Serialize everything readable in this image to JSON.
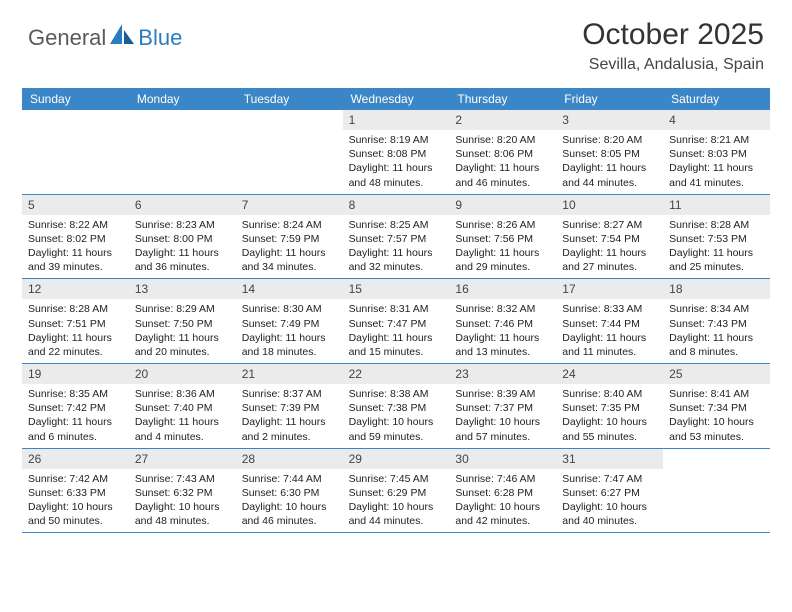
{
  "brand": {
    "general": "General",
    "blue": "Blue"
  },
  "title": {
    "month": "October 2025",
    "location": "Sevilla, Andalusia, Spain"
  },
  "colors": {
    "header_bg": "#3b86c7",
    "header_text": "#ffffff",
    "daynum_bg": "#ebebeb",
    "week_border": "#3b86c7",
    "logo_blue": "#2b7bbf",
    "logo_gray": "#5a5a5a"
  },
  "dayheads": [
    "Sunday",
    "Monday",
    "Tuesday",
    "Wednesday",
    "Thursday",
    "Friday",
    "Saturday"
  ],
  "weeks": [
    [
      {
        "n": "",
        "sr": "",
        "ss": "",
        "d1": "",
        "d2": ""
      },
      {
        "n": "",
        "sr": "",
        "ss": "",
        "d1": "",
        "d2": ""
      },
      {
        "n": "",
        "sr": "",
        "ss": "",
        "d1": "",
        "d2": ""
      },
      {
        "n": "1",
        "sr": "Sunrise: 8:19 AM",
        "ss": "Sunset: 8:08 PM",
        "d1": "Daylight: 11 hours",
        "d2": "and 48 minutes."
      },
      {
        "n": "2",
        "sr": "Sunrise: 8:20 AM",
        "ss": "Sunset: 8:06 PM",
        "d1": "Daylight: 11 hours",
        "d2": "and 46 minutes."
      },
      {
        "n": "3",
        "sr": "Sunrise: 8:20 AM",
        "ss": "Sunset: 8:05 PM",
        "d1": "Daylight: 11 hours",
        "d2": "and 44 minutes."
      },
      {
        "n": "4",
        "sr": "Sunrise: 8:21 AM",
        "ss": "Sunset: 8:03 PM",
        "d1": "Daylight: 11 hours",
        "d2": "and 41 minutes."
      }
    ],
    [
      {
        "n": "5",
        "sr": "Sunrise: 8:22 AM",
        "ss": "Sunset: 8:02 PM",
        "d1": "Daylight: 11 hours",
        "d2": "and 39 minutes."
      },
      {
        "n": "6",
        "sr": "Sunrise: 8:23 AM",
        "ss": "Sunset: 8:00 PM",
        "d1": "Daylight: 11 hours",
        "d2": "and 36 minutes."
      },
      {
        "n": "7",
        "sr": "Sunrise: 8:24 AM",
        "ss": "Sunset: 7:59 PM",
        "d1": "Daylight: 11 hours",
        "d2": "and 34 minutes."
      },
      {
        "n": "8",
        "sr": "Sunrise: 8:25 AM",
        "ss": "Sunset: 7:57 PM",
        "d1": "Daylight: 11 hours",
        "d2": "and 32 minutes."
      },
      {
        "n": "9",
        "sr": "Sunrise: 8:26 AM",
        "ss": "Sunset: 7:56 PM",
        "d1": "Daylight: 11 hours",
        "d2": "and 29 minutes."
      },
      {
        "n": "10",
        "sr": "Sunrise: 8:27 AM",
        "ss": "Sunset: 7:54 PM",
        "d1": "Daylight: 11 hours",
        "d2": "and 27 minutes."
      },
      {
        "n": "11",
        "sr": "Sunrise: 8:28 AM",
        "ss": "Sunset: 7:53 PM",
        "d1": "Daylight: 11 hours",
        "d2": "and 25 minutes."
      }
    ],
    [
      {
        "n": "12",
        "sr": "Sunrise: 8:28 AM",
        "ss": "Sunset: 7:51 PM",
        "d1": "Daylight: 11 hours",
        "d2": "and 22 minutes."
      },
      {
        "n": "13",
        "sr": "Sunrise: 8:29 AM",
        "ss": "Sunset: 7:50 PM",
        "d1": "Daylight: 11 hours",
        "d2": "and 20 minutes."
      },
      {
        "n": "14",
        "sr": "Sunrise: 8:30 AM",
        "ss": "Sunset: 7:49 PM",
        "d1": "Daylight: 11 hours",
        "d2": "and 18 minutes."
      },
      {
        "n": "15",
        "sr": "Sunrise: 8:31 AM",
        "ss": "Sunset: 7:47 PM",
        "d1": "Daylight: 11 hours",
        "d2": "and 15 minutes."
      },
      {
        "n": "16",
        "sr": "Sunrise: 8:32 AM",
        "ss": "Sunset: 7:46 PM",
        "d1": "Daylight: 11 hours",
        "d2": "and 13 minutes."
      },
      {
        "n": "17",
        "sr": "Sunrise: 8:33 AM",
        "ss": "Sunset: 7:44 PM",
        "d1": "Daylight: 11 hours",
        "d2": "and 11 minutes."
      },
      {
        "n": "18",
        "sr": "Sunrise: 8:34 AM",
        "ss": "Sunset: 7:43 PM",
        "d1": "Daylight: 11 hours",
        "d2": "and 8 minutes."
      }
    ],
    [
      {
        "n": "19",
        "sr": "Sunrise: 8:35 AM",
        "ss": "Sunset: 7:42 PM",
        "d1": "Daylight: 11 hours",
        "d2": "and 6 minutes."
      },
      {
        "n": "20",
        "sr": "Sunrise: 8:36 AM",
        "ss": "Sunset: 7:40 PM",
        "d1": "Daylight: 11 hours",
        "d2": "and 4 minutes."
      },
      {
        "n": "21",
        "sr": "Sunrise: 8:37 AM",
        "ss": "Sunset: 7:39 PM",
        "d1": "Daylight: 11 hours",
        "d2": "and 2 minutes."
      },
      {
        "n": "22",
        "sr": "Sunrise: 8:38 AM",
        "ss": "Sunset: 7:38 PM",
        "d1": "Daylight: 10 hours",
        "d2": "and 59 minutes."
      },
      {
        "n": "23",
        "sr": "Sunrise: 8:39 AM",
        "ss": "Sunset: 7:37 PM",
        "d1": "Daylight: 10 hours",
        "d2": "and 57 minutes."
      },
      {
        "n": "24",
        "sr": "Sunrise: 8:40 AM",
        "ss": "Sunset: 7:35 PM",
        "d1": "Daylight: 10 hours",
        "d2": "and 55 minutes."
      },
      {
        "n": "25",
        "sr": "Sunrise: 8:41 AM",
        "ss": "Sunset: 7:34 PM",
        "d1": "Daylight: 10 hours",
        "d2": "and 53 minutes."
      }
    ],
    [
      {
        "n": "26",
        "sr": "Sunrise: 7:42 AM",
        "ss": "Sunset: 6:33 PM",
        "d1": "Daylight: 10 hours",
        "d2": "and 50 minutes."
      },
      {
        "n": "27",
        "sr": "Sunrise: 7:43 AM",
        "ss": "Sunset: 6:32 PM",
        "d1": "Daylight: 10 hours",
        "d2": "and 48 minutes."
      },
      {
        "n": "28",
        "sr": "Sunrise: 7:44 AM",
        "ss": "Sunset: 6:30 PM",
        "d1": "Daylight: 10 hours",
        "d2": "and 46 minutes."
      },
      {
        "n": "29",
        "sr": "Sunrise: 7:45 AM",
        "ss": "Sunset: 6:29 PM",
        "d1": "Daylight: 10 hours",
        "d2": "and 44 minutes."
      },
      {
        "n": "30",
        "sr": "Sunrise: 7:46 AM",
        "ss": "Sunset: 6:28 PM",
        "d1": "Daylight: 10 hours",
        "d2": "and 42 minutes."
      },
      {
        "n": "31",
        "sr": "Sunrise: 7:47 AM",
        "ss": "Sunset: 6:27 PM",
        "d1": "Daylight: 10 hours",
        "d2": "and 40 minutes."
      },
      {
        "n": "",
        "sr": "",
        "ss": "",
        "d1": "",
        "d2": ""
      }
    ]
  ]
}
